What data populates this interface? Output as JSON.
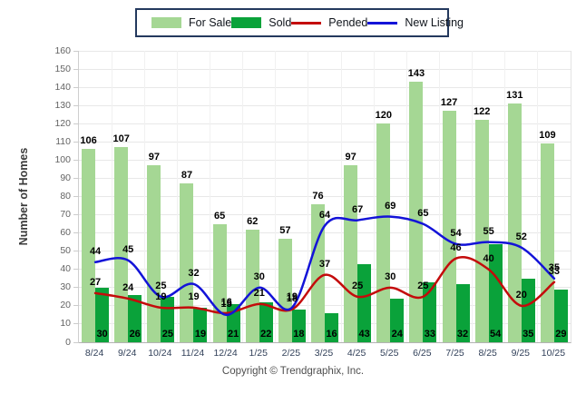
{
  "footer": {
    "copyright": "Copyright © Trendgraphix, Inc."
  },
  "colors": {
    "for_sale": "#a5d794",
    "sold": "#0aa23a",
    "pended": "#c40b0b",
    "new_listing": "#1313d8",
    "legend_border": "#24395e",
    "gridline": "#e8e8e8"
  },
  "chart_data": {
    "type": "bar+line",
    "title": "",
    "xlabel": "",
    "ylabel": "Number of Homes",
    "ylim": [
      0,
      160
    ],
    "ytick_step": 10,
    "grid": true,
    "legend_position": "top",
    "categories": [
      "8/24",
      "9/24",
      "10/24",
      "11/24",
      "12/24",
      "1/25",
      "2/25",
      "3/25",
      "4/25",
      "5/25",
      "6/25",
      "7/25",
      "8/25",
      "9/25",
      "10/25"
    ],
    "series": [
      {
        "name": "For Sale",
        "type": "bar",
        "color": "#a5d794",
        "values": [
          106,
          107,
          97,
          87,
          65,
          62,
          57,
          76,
          97,
          120,
          143,
          127,
          122,
          131,
          109
        ]
      },
      {
        "name": "Sold",
        "type": "bar",
        "color": "#0aa23a",
        "values": [
          30,
          26,
          25,
          19,
          21,
          22,
          18,
          16,
          43,
          24,
          33,
          32,
          54,
          35,
          29
        ]
      },
      {
        "name": "Pended",
        "type": "line",
        "color": "#c40b0b",
        "values": [
          27,
          24,
          19,
          19,
          16,
          21,
          18,
          37,
          25,
          30,
          25,
          46,
          40,
          20,
          33
        ]
      },
      {
        "name": "New Listing",
        "type": "line",
        "color": "#1313d8",
        "values": [
          44,
          45,
          25,
          32,
          15,
          30,
          19,
          64,
          67,
          69,
          65,
          54,
          55,
          52,
          35
        ]
      }
    ]
  }
}
